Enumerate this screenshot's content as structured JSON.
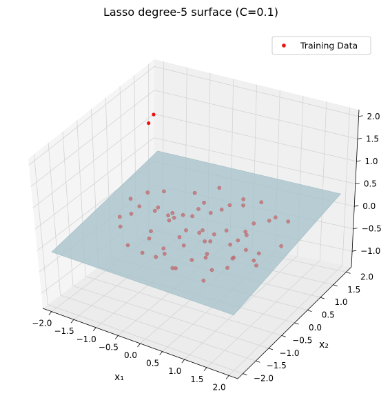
{
  "chart_data": {
    "type": "scatter",
    "title": "Lasso degree-5 surface (C=0.1)",
    "xlabel": "x₁",
    "ylabel": "x₂",
    "zlabel": "",
    "x_ticks": [
      "−2.0",
      "−1.5",
      "−1.0",
      "−0.5",
      "0.0",
      "0.5",
      "1.0",
      "1.5",
      "2.0"
    ],
    "y_ticks": [
      "−2.0",
      "−1.5",
      "−1.0",
      "−0.5",
      "0.0",
      "0.5",
      "1.0",
      "1.5",
      "2.0"
    ],
    "z_ticks": [
      "−1.0",
      "−0.5",
      "0.0",
      "0.5",
      "1.0",
      "1.5",
      "2.0"
    ],
    "xlim": [
      -2.2,
      2.2
    ],
    "ylim": [
      -2.2,
      2.2
    ],
    "zlim": [
      -1.35,
      2.15
    ],
    "surface": {
      "type": "plane",
      "z_at_corners": {
        "x_min_y_min": -0.05,
        "x_max_y_min": 0.0,
        "x_min_y_max": 0.35,
        "x_max_y_max": 0.35
      },
      "color": "#a9c4cc"
    },
    "legend": {
      "label": "Training Data",
      "position": "top-right",
      "color": "#ee1111"
    },
    "series": [
      {
        "name": "Training Data",
        "color": "#ee1111",
        "points": [
          [
            -1.35,
            0.2,
            0.15
          ],
          [
            -1.1,
            0.35,
            0.05
          ],
          [
            -0.9,
            -0.15,
            -0.1
          ],
          [
            -0.75,
            0.25,
            0.1
          ],
          [
            -1.2,
            -0.35,
            0.3
          ],
          [
            -0.6,
            0.55,
            0.0
          ],
          [
            -0.95,
            0.75,
            -0.15
          ],
          [
            -1.4,
            0.6,
            0.25
          ],
          [
            -0.55,
            -0.05,
            0.2
          ],
          [
            -0.3,
            0.15,
            -0.05
          ],
          [
            -0.15,
            -0.35,
            0.1
          ],
          [
            -0.45,
            -0.45,
            -0.2
          ],
          [
            0.05,
            0.05,
            0.05
          ],
          [
            0.2,
            0.35,
            -0.1
          ],
          [
            -0.05,
            0.65,
            0.15
          ],
          [
            0.35,
            -0.05,
            0.0
          ],
          [
            0.5,
            0.3,
            0.1
          ],
          [
            0.45,
            -0.4,
            -0.15
          ],
          [
            0.25,
            0.85,
            0.3
          ],
          [
            0.7,
            0.1,
            -0.05
          ],
          [
            0.6,
            -0.6,
            0.1
          ],
          [
            0.15,
            -0.7,
            0.2
          ],
          [
            -0.25,
            -0.75,
            -0.1
          ],
          [
            -0.7,
            -0.55,
            0.0
          ],
          [
            0.8,
            0.5,
            0.05
          ],
          [
            0.95,
            -0.2,
            -0.1
          ],
          [
            1.0,
            0.2,
            0.2
          ],
          [
            1.1,
            -0.5,
            0.1
          ],
          [
            0.85,
            -0.85,
            -0.05
          ],
          [
            0.5,
            -1.0,
            0.15
          ],
          [
            0.1,
            -1.05,
            -0.15
          ],
          [
            -0.4,
            1.0,
            0.1
          ],
          [
            -0.1,
            1.15,
            -0.05
          ],
          [
            0.4,
            1.1,
            0.2
          ],
          [
            0.75,
            0.9,
            0.0
          ],
          [
            1.2,
            0.7,
            0.3
          ],
          [
            1.3,
            0.15,
            -0.1
          ],
          [
            1.45,
            -0.3,
            0.05
          ],
          [
            1.25,
            -0.95,
            0.2
          ],
          [
            0.9,
            -1.25,
            -0.05
          ],
          [
            0.35,
            -1.35,
            0.1
          ],
          [
            -0.05,
            -1.4,
            0.25
          ],
          [
            -0.5,
            -1.15,
            0.05
          ],
          [
            -1.0,
            -0.85,
            -0.1
          ],
          [
            -1.3,
            -0.6,
            0.1
          ],
          [
            -1.55,
            -0.2,
            0.05
          ],
          [
            -1.6,
            0.3,
            0.2
          ],
          [
            -1.25,
            0.95,
            0.15
          ],
          [
            -0.75,
            1.25,
            0.1
          ],
          [
            -0.3,
            1.4,
            0.25
          ],
          [
            0.2,
            1.45,
            0.1
          ],
          [
            0.65,
            1.35,
            0.2
          ],
          [
            1.05,
            1.2,
            0.05
          ],
          [
            1.5,
            0.9,
            0.25
          ],
          [
            1.7,
            0.3,
            0.1
          ],
          [
            1.65,
            -0.55,
            0.15
          ],
          [
            -0.85,
            0.05,
            0.35
          ],
          [
            -0.2,
            0.45,
            0.3
          ],
          [
            0.3,
            -0.25,
            0.35
          ],
          [
            0.05,
            0.25,
            -0.25
          ],
          [
            -0.6,
            0.9,
            -0.2
          ],
          [
            0.9,
            0.35,
            -0.25
          ],
          [
            -0.35,
            -0.2,
            0.4
          ],
          [
            0.55,
            0.65,
            -0.3
          ],
          [
            -1.85,
            1.6,
            1.35
          ],
          [
            -1.9,
            1.5,
            1.2
          ]
        ]
      }
    ]
  }
}
